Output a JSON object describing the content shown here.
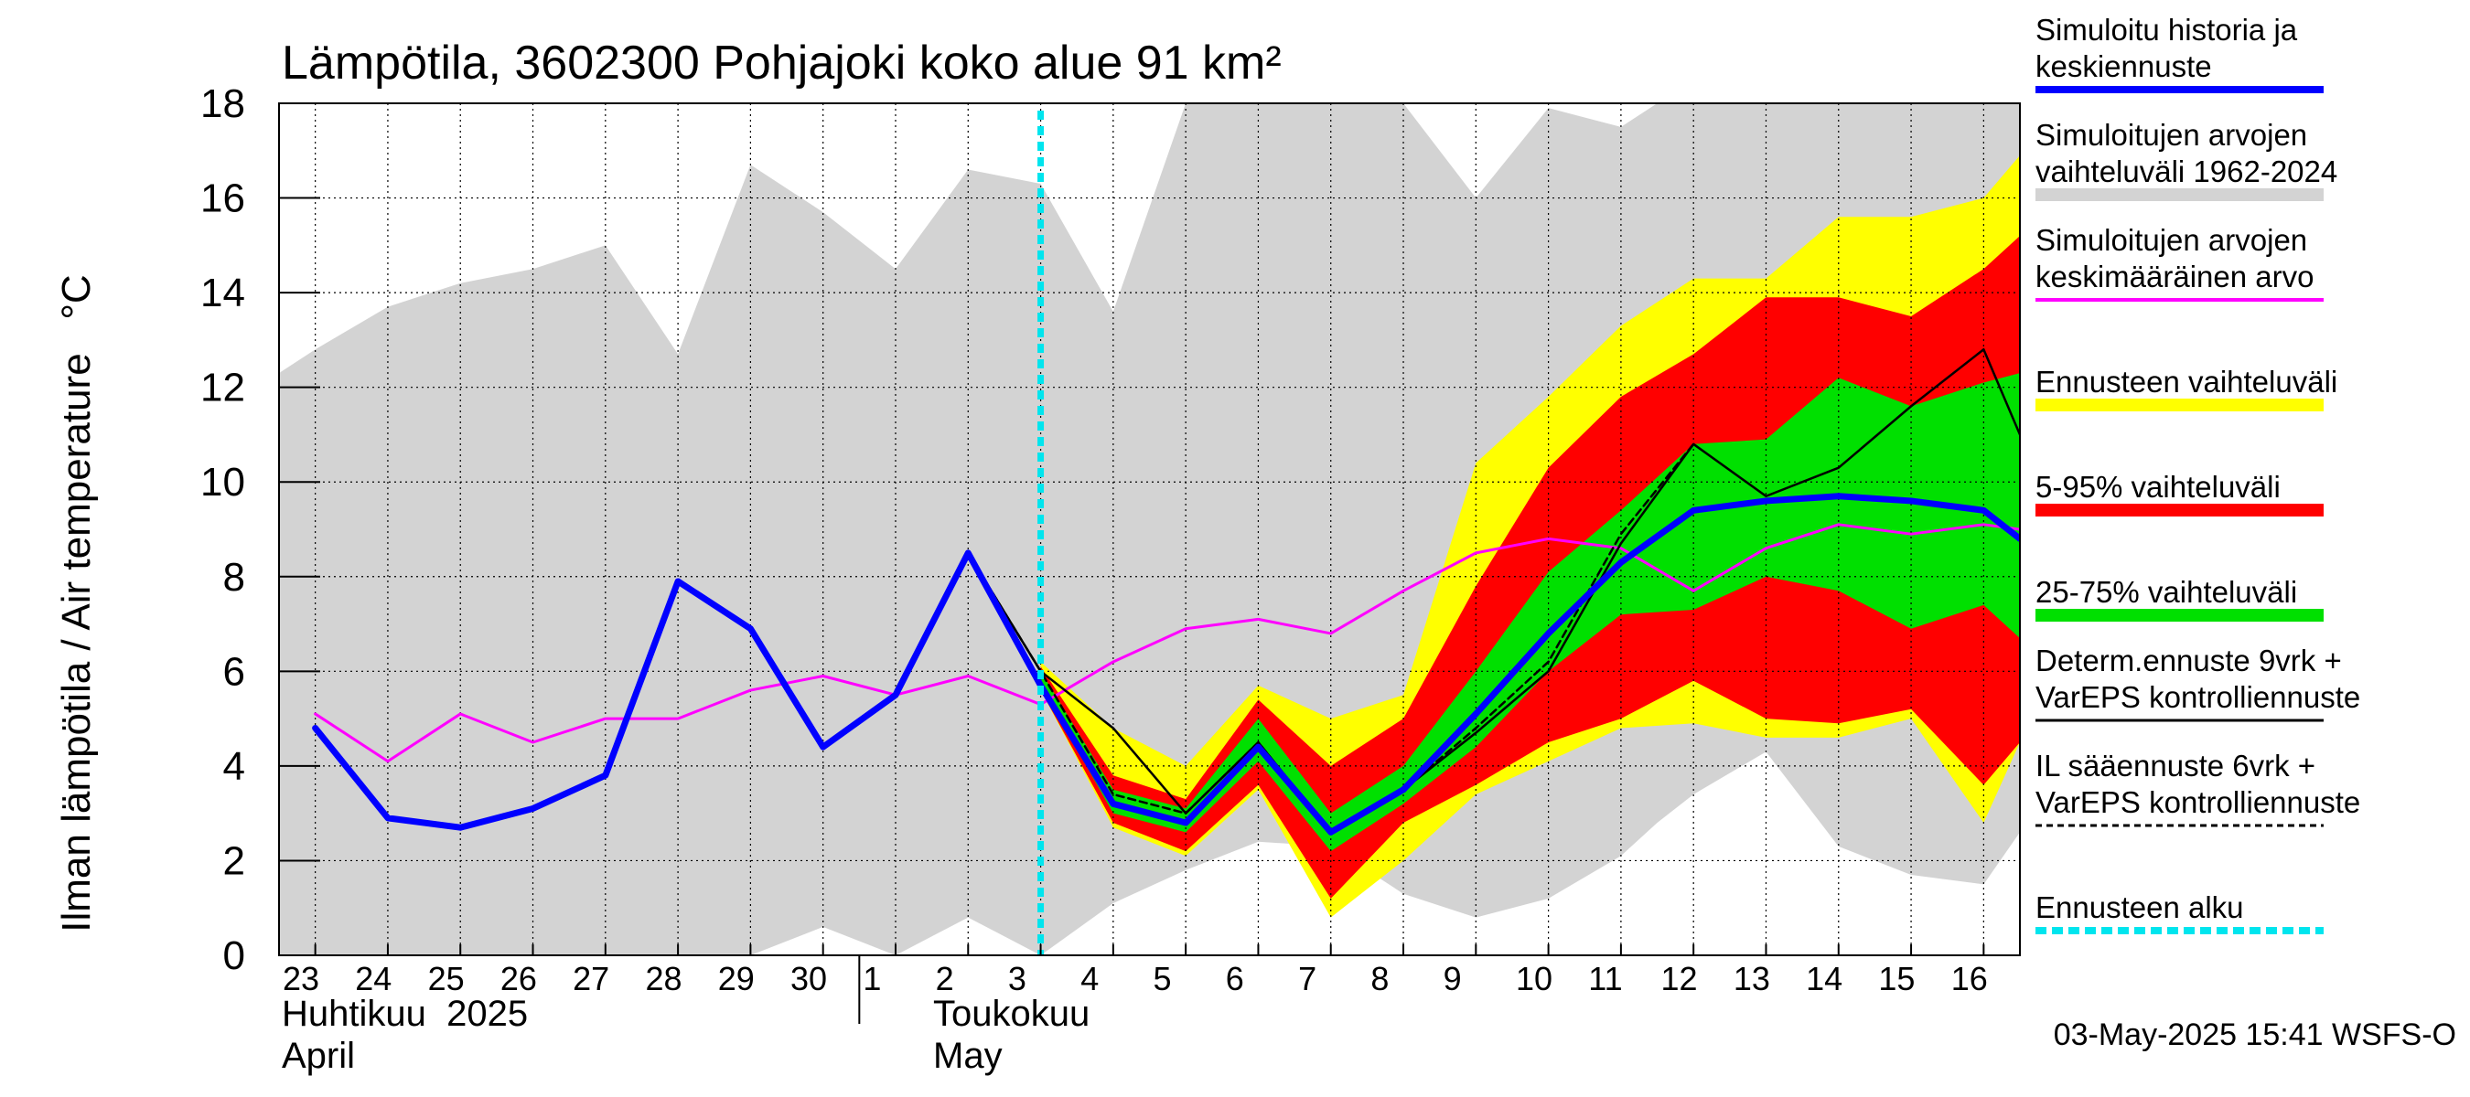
{
  "chart_data": {
    "type": "line",
    "title": "Lämpötila, 3602300 Pohjajoki koko alue 91 km²",
    "ylabel": "Ilman lämpötila / Air temperature   °C",
    "ylim": [
      0,
      18
    ],
    "y_ticks": [
      "0",
      "2",
      "4",
      "6",
      "8",
      "10",
      "12",
      "14",
      "16",
      "18"
    ],
    "xlim": [
      22.5,
      46.5
    ],
    "x_ticks": [
      {
        "x": 23,
        "label": "23"
      },
      {
        "x": 24,
        "label": "24"
      },
      {
        "x": 25,
        "label": "25"
      },
      {
        "x": 26,
        "label": "26"
      },
      {
        "x": 27,
        "label": "27"
      },
      {
        "x": 28,
        "label": "28"
      },
      {
        "x": 29,
        "label": "29"
      },
      {
        "x": 30,
        "label": "30"
      },
      {
        "x": 31,
        "label": "1"
      },
      {
        "x": 32,
        "label": "2"
      },
      {
        "x": 33,
        "label": "3"
      },
      {
        "x": 34,
        "label": "4"
      },
      {
        "x": 35,
        "label": "5"
      },
      {
        "x": 36,
        "label": "6"
      },
      {
        "x": 37,
        "label": "7"
      },
      {
        "x": 38,
        "label": "8"
      },
      {
        "x": 39,
        "label": "9"
      },
      {
        "x": 40,
        "label": "10"
      },
      {
        "x": 41,
        "label": "11"
      },
      {
        "x": 42,
        "label": "12"
      },
      {
        "x": 43,
        "label": "13"
      },
      {
        "x": 44,
        "label": "14"
      },
      {
        "x": 45,
        "label": "15"
      },
      {
        "x": 46,
        "label": "16"
      }
    ],
    "month_labels": [
      {
        "fi": "Huhtikuu  2025",
        "en": "April"
      },
      {
        "fi": "Toukokuu",
        "en": "May"
      }
    ],
    "forecast_start_x": 33,
    "bands": [
      {
        "name": "Simuloitujen arvojen vaihteluväli 1962-2024",
        "color": "#d3d3d3",
        "x": [
          22.5,
          23,
          24,
          25,
          26,
          27,
          28,
          29,
          30,
          31,
          32,
          33,
          34,
          35,
          36,
          37,
          38,
          39,
          40,
          41,
          41.5,
          42,
          43,
          44,
          45,
          46,
          46.5
        ],
        "upper": [
          12.3,
          12.8,
          13.7,
          14.2,
          14.5,
          15.0,
          12.7,
          16.7,
          15.7,
          14.5,
          16.6,
          16.3,
          13.6,
          18,
          18,
          18,
          18,
          16.0,
          17.9,
          17.5,
          18,
          18,
          18,
          18,
          18,
          18,
          18
        ],
        "lower": [
          0,
          0,
          0,
          0,
          0,
          0,
          0,
          0,
          0.6,
          0,
          0.8,
          0,
          1.1,
          1.8,
          2.4,
          2.3,
          1.3,
          0.8,
          1.2,
          2.1,
          2.8,
          3.4,
          4.3,
          2.3,
          1.7,
          1.5,
          2.6
        ]
      },
      {
        "name": "Ennusteen vaihteluväli",
        "color": "#ffff00",
        "x": [
          33,
          34,
          35,
          36,
          37,
          38,
          39,
          40,
          41,
          42,
          43,
          44,
          45,
          46,
          46.5
        ],
        "upper": [
          6.2,
          4.8,
          4.0,
          5.7,
          5.0,
          5.5,
          10.4,
          11.8,
          13.3,
          14.3,
          14.3,
          15.6,
          15.6,
          16.0,
          16.9
        ],
        "lower": [
          5.6,
          2.7,
          2.1,
          3.5,
          0.8,
          2.0,
          3.4,
          4.1,
          4.8,
          4.9,
          4.6,
          4.6,
          5.0,
          2.8,
          4.5
        ]
      },
      {
        "name": "5-95% vaihteluväli",
        "color": "#ff0000",
        "x": [
          33,
          34,
          35,
          36,
          37,
          38,
          39,
          40,
          41,
          42,
          43,
          44,
          45,
          46,
          46.5
        ],
        "upper": [
          6.1,
          3.8,
          3.3,
          5.4,
          4.0,
          5.0,
          7.8,
          10.3,
          11.8,
          12.7,
          13.9,
          13.9,
          13.5,
          14.5,
          15.2
        ],
        "lower": [
          5.6,
          2.8,
          2.2,
          3.6,
          1.2,
          2.8,
          3.6,
          4.5,
          5.0,
          5.8,
          5.0,
          4.9,
          5.2,
          3.6,
          4.5
        ]
      },
      {
        "name": "25-75% vaihteluväli",
        "color": "#00e000",
        "x": [
          33,
          34,
          35,
          36,
          37,
          38,
          39,
          40,
          41,
          42,
          43,
          44,
          45,
          46,
          46.5
        ],
        "upper": [
          6.0,
          3.5,
          3.1,
          5.0,
          3.0,
          4.0,
          6.0,
          8.1,
          9.4,
          10.8,
          10.9,
          12.2,
          11.6,
          12.1,
          12.3
        ],
        "lower": [
          5.7,
          3.0,
          2.6,
          4.1,
          2.2,
          3.2,
          4.4,
          6.0,
          7.2,
          7.3,
          8.0,
          7.7,
          6.9,
          7.4,
          6.7
        ]
      }
    ],
    "series": [
      {
        "name": "Simuloitujen arvojen keskimääräinen arvo",
        "color": "#ff00ff",
        "width": 3,
        "x": [
          23,
          24,
          25,
          26,
          27,
          28,
          29,
          30,
          31,
          32,
          33,
          34,
          35,
          36,
          37,
          38,
          39,
          40,
          41,
          42,
          43,
          44,
          45,
          46,
          46.5
        ],
        "y": [
          5.1,
          4.1,
          5.1,
          4.5,
          5.0,
          5.0,
          5.6,
          5.9,
          5.5,
          5.9,
          5.3,
          6.2,
          6.9,
          7.1,
          6.8,
          7.7,
          8.5,
          8.8,
          8.6,
          7.7,
          8.6,
          9.1,
          8.9,
          9.1,
          9.0
        ]
      },
      {
        "name": "Determ.ennuste 9vrk + VarEPS kontrolliennuste",
        "color": "#000000",
        "width": 2.5,
        "x": [
          31,
          32,
          33,
          34,
          35,
          36,
          37,
          38,
          39,
          40,
          41,
          42,
          43,
          44,
          45,
          46,
          46.5
        ],
        "y": [
          5.6,
          8.5,
          6.0,
          4.8,
          3.0,
          4.5,
          2.6,
          3.5,
          4.7,
          6.0,
          8.7,
          10.8,
          9.7,
          10.3,
          11.6,
          12.8,
          11.0
        ]
      },
      {
        "name": "IL sääennuste 6vrk + VarEPS kontrolliennuste",
        "color": "#000000",
        "width": 2.5,
        "dash": "8,5",
        "x": [
          32,
          33,
          34,
          35,
          36,
          37,
          38,
          39,
          40,
          41,
          42
        ],
        "y": [
          8.5,
          6.0,
          3.4,
          3.0,
          4.5,
          2.6,
          3.5,
          4.8,
          6.2,
          8.9,
          10.8
        ]
      },
      {
        "name": "Simuloitu historia ja keskiennuste",
        "color": "#0000ff",
        "width": 7,
        "x": [
          23,
          24,
          25,
          26,
          27,
          28,
          29,
          30,
          31,
          32,
          33,
          34,
          35,
          36,
          37,
          38,
          39,
          40,
          41,
          42,
          43,
          44,
          45,
          46,
          46.5
        ],
        "y": [
          4.8,
          2.9,
          2.7,
          3.1,
          3.8,
          7.9,
          6.9,
          4.4,
          5.5,
          8.5,
          5.7,
          3.2,
          2.8,
          4.4,
          2.6,
          3.5,
          5.1,
          6.8,
          8.3,
          9.4,
          9.6,
          9.7,
          9.6,
          9.4,
          8.8
        ]
      }
    ],
    "legend": [
      {
        "lines": [
          "Simuloitu historia ja",
          "keskiennuste"
        ],
        "color": "#0000ff",
        "style": "solid",
        "width": 8
      },
      {
        "lines": [
          "Simuloitujen arvojen",
          "vaihteluväli 1962-2024"
        ],
        "color": "#d3d3d3",
        "style": "solid",
        "width": 14
      },
      {
        "lines": [
          "Simuloitujen arvojen",
          "keskimääräinen arvo"
        ],
        "color": "#ff00ff",
        "style": "solid",
        "width": 4
      },
      {
        "lines": [
          "Ennusteen vaihteluväli"
        ],
        "color": "#ffff00",
        "style": "solid",
        "width": 14
      },
      {
        "lines": [
          "5-95% vaihteluväli"
        ],
        "color": "#ff0000",
        "style": "solid",
        "width": 14
      },
      {
        "lines": [
          "25-75% vaihteluväli"
        ],
        "color": "#00e000",
        "style": "solid",
        "width": 14
      },
      {
        "lines": [
          "Determ.ennuste 9vrk +",
          "VarEPS kontrolliennuste"
        ],
        "color": "#000000",
        "style": "solid",
        "width": 3
      },
      {
        "lines": [
          "IL sääennuste 6vrk  +",
          "  VarEPS kontrolliennuste"
        ],
        "color": "#000000",
        "style": "dashed",
        "width": 3
      },
      {
        "lines": [
          "Ennusteen alku"
        ],
        "color": "#00e5ee",
        "style": "dotted",
        "width": 8
      }
    ],
    "footer": "03-May-2025 15:41 WSFS-O"
  }
}
